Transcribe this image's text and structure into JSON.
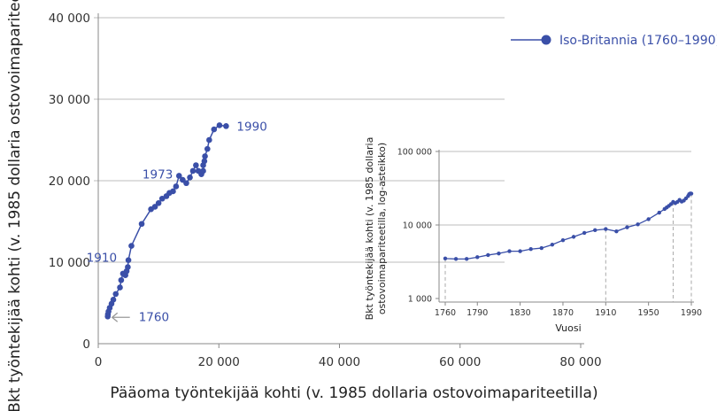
{
  "colors": {
    "series": "#3a4fa8",
    "grid": "#bdbdbd",
    "axis": "#888888",
    "arrow": "#999999"
  },
  "chart_data": [
    {
      "type": "scatter",
      "mode": "line+markers",
      "xlabel": "Pääoma työntekijää kohti (v. 1985 dollaria ostovoimapariteetilla)",
      "ylabel": "Bkt työntekijää kohti (v. 1985 dollaria ostovoimapariteetilla)",
      "xlim": [
        0,
        80000
      ],
      "ylim": [
        0,
        40000
      ],
      "xticks": [
        "0",
        "20 000",
        "40 000",
        "60 000",
        "80 000"
      ],
      "yticks": [
        "0",
        "10 000",
        "20 000",
        "30 000",
        "40 000"
      ],
      "grid": "horizontal",
      "legend": {
        "placement": "top-right",
        "entries": [
          "Iso-Britannia (1760–1990)"
        ]
      },
      "series": [
        {
          "name": "Iso-Britannia (1760–1990)",
          "x": [
            1570,
            1600,
            1700,
            1900,
            2200,
            2500,
            2900,
            3600,
            3800,
            4100,
            4500,
            4700,
            4900,
            5000,
            5500,
            7200,
            8750,
            9400,
            10000,
            10600,
            11300,
            11800,
            12400,
            12900,
            13400,
            14000,
            14600,
            15200,
            15700,
            16200,
            16600,
            17100,
            17400,
            17400,
            17600,
            17700,
            18100,
            18400,
            19200,
            20100,
            21200
          ],
          "y": [
            3340,
            3600,
            3950,
            4400,
            4900,
            5400,
            6100,
            6900,
            7800,
            8600,
            8400,
            8900,
            9400,
            10250,
            12000,
            14700,
            16500,
            16800,
            17250,
            17800,
            18100,
            18500,
            18700,
            19300,
            20600,
            20100,
            19700,
            20400,
            21200,
            21900,
            21200,
            20800,
            21200,
            21900,
            22400,
            23000,
            23900,
            25000,
            26300,
            26800,
            26700
          ]
        }
      ],
      "annotations": [
        {
          "text": "1760",
          "point": 0,
          "arrow": true
        },
        {
          "text": "1910",
          "point": 13
        },
        {
          "text": "1973",
          "point": 24
        },
        {
          "text": "1990",
          "point": 40
        }
      ]
    },
    {
      "type": "line",
      "xlabel": "Vuosi",
      "ylabel": "Bkt työntekijää kohti (v. 1985 dollaria ostovoimapariteetilla, log-asteikko)",
      "ylabel_lines": [
        "Bkt työntekijää kohti (v. 1985 dollaria",
        "ostovoimapariteetilla, log-asteikko)"
      ],
      "yscale": "log",
      "xlim": [
        1760,
        1990
      ],
      "ylim": [
        1000,
        100000
      ],
      "xticks": [
        "1760",
        "1790",
        "1830",
        "1870",
        "1910",
        "1950",
        "1990"
      ],
      "yticks": [
        "1 000",
        "10 000",
        "100 000"
      ],
      "grid": "horizontal",
      "reference_lines_x": [
        1760,
        1910,
        1973,
        1990
      ],
      "x": [
        1760,
        1770,
        1780,
        1790,
        1800,
        1810,
        1820,
        1830,
        1840,
        1850,
        1860,
        1870,
        1880,
        1890,
        1900,
        1910,
        1920,
        1930,
        1940,
        1950,
        1960,
        1965,
        1967,
        1969,
        1971,
        1973,
        1975,
        1977,
        1979,
        1981,
        1983,
        1985,
        1987,
        1988,
        1989,
        1990
      ],
      "y": [
        3500,
        3450,
        3450,
        3650,
        3900,
        4100,
        4400,
        4400,
        4700,
        4850,
        5400,
        6200,
        6900,
        7800,
        8500,
        8800,
        8200,
        9300,
        10200,
        12000,
        14700,
        16500,
        17300,
        18200,
        19200,
        20600,
        19800,
        20600,
        21900,
        20800,
        21500,
        23000,
        24800,
        26300,
        26800,
        26700
      ]
    }
  ]
}
